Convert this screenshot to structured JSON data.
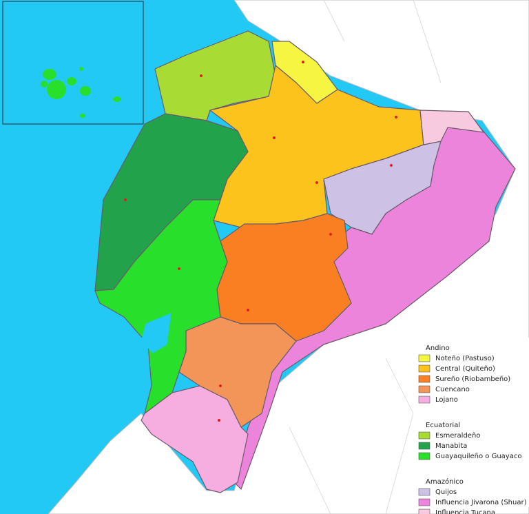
{
  "legend": {
    "groups": [
      {
        "title": "Andino",
        "items": [
          {
            "label": "Noteño (Pastuso)",
            "color": "#f5f542"
          },
          {
            "label": "Central (Quiteño)",
            "color": "#fcc31c"
          },
          {
            "label": "Sureño (Riobambeño)",
            "color": "#f97f22"
          },
          {
            "label": "Cuencano",
            "color": "#f39458"
          },
          {
            "label": "Lojano",
            "color": "#f6aee0"
          }
        ]
      },
      {
        "title": "Ecuatorial",
        "items": [
          {
            "label": "Esmeraldeño",
            "color": "#a8dc34"
          },
          {
            "label": "Manabita",
            "color": "#22a24a"
          },
          {
            "label": "Guayaquileño o Guayaco",
            "color": "#28e02c"
          }
        ]
      },
      {
        "title": "Amazónico",
        "items": [
          {
            "label": "Quijos",
            "color": "#cdc2e6"
          },
          {
            "label": "Influencia Jivarona (Shuar)",
            "color": "#ec84dc"
          },
          {
            "label": "Influencia Tucana",
            "color": "#f8cae0"
          }
        ]
      }
    ]
  }
}
